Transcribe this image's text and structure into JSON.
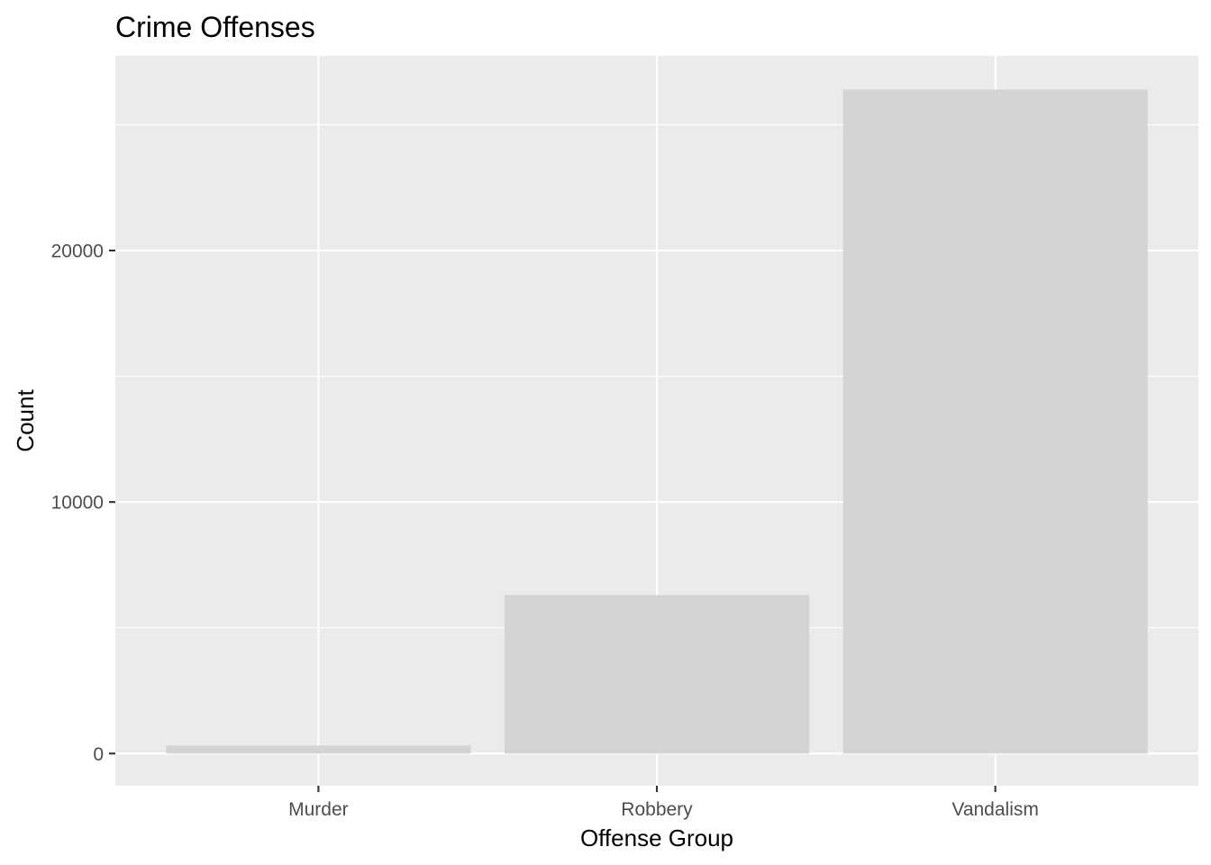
{
  "chart_data": {
    "type": "bar",
    "title": "Crime Offenses",
    "xlabel": "Offense Group",
    "ylabel": "Count",
    "categories": [
      "Murder",
      "Robbery",
      "Vandalism"
    ],
    "values": [
      320,
      6300,
      26400
    ],
    "ylim": [
      -1280,
      27740
    ],
    "yticks": [
      0,
      10000,
      20000
    ],
    "yticks_minor": [
      5000,
      15000,
      25000
    ],
    "grid": true,
    "legend": "none",
    "colors": {
      "panel": "#ebebeb",
      "grid": "#ffffff",
      "bar": "#d3d3d3",
      "tick": "#333333"
    }
  }
}
